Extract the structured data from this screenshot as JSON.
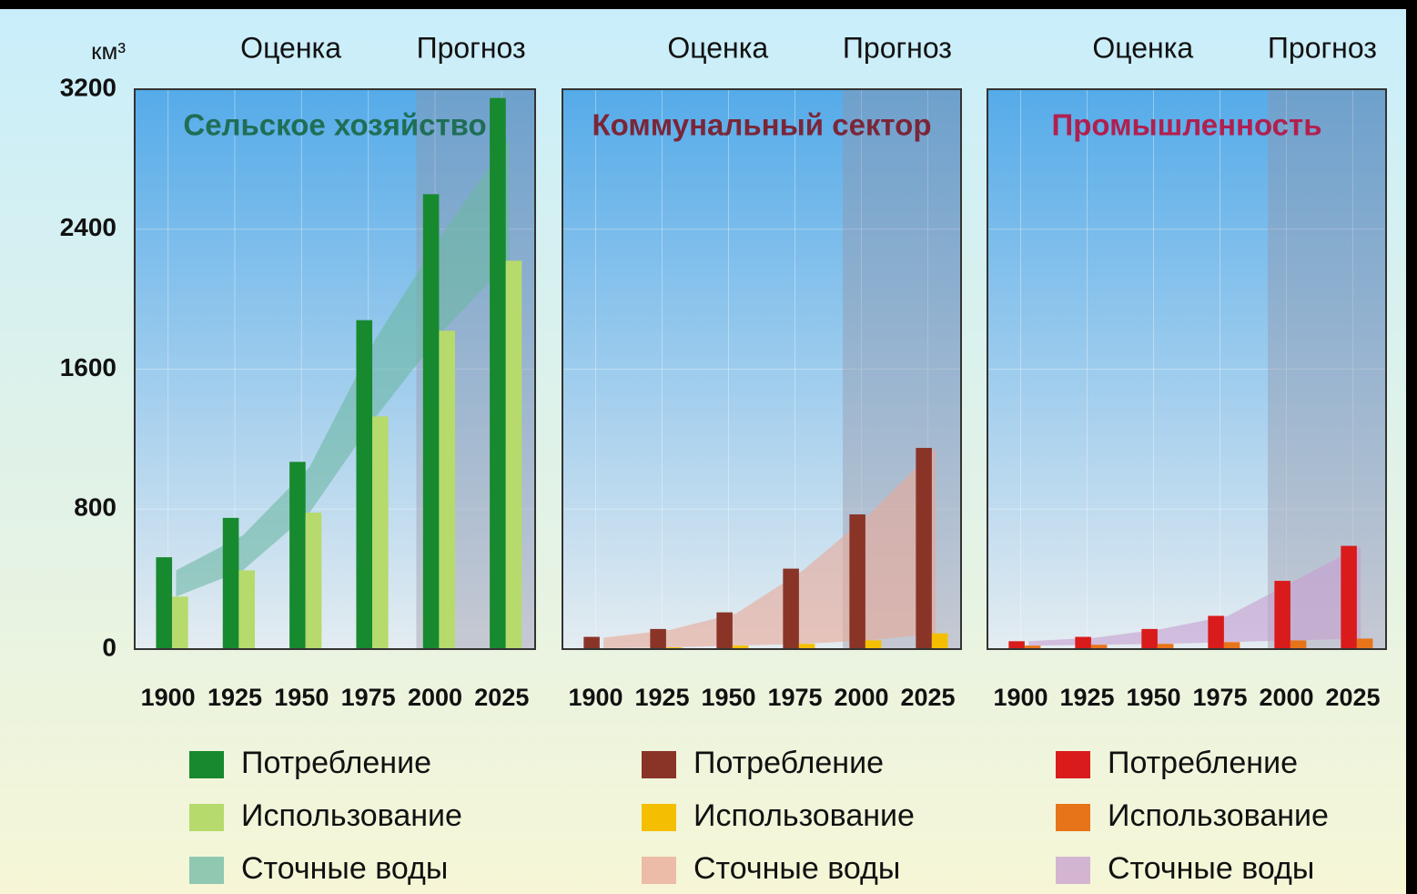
{
  "chart_data": [
    {
      "type": "bar",
      "title": "Сельское хозяйство",
      "title_color": "#1f6e55",
      "y_label": "км³",
      "annotations": [
        "Оценка",
        "Прогноз"
      ],
      "forecast_start": "2000",
      "categories": [
        "1900",
        "1925",
        "1950",
        "1975",
        "2000",
        "2025"
      ],
      "ylim": [
        0,
        3200
      ],
      "yticks": [
        0,
        800,
        1600,
        2400,
        3200
      ],
      "grid": true,
      "series": [
        {
          "name": "Потребление",
          "color": "#17892e",
          "values": [
            525,
            750,
            1070,
            1880,
            2600,
            3150
          ]
        },
        {
          "name": "Использование",
          "color": "#b6da6c",
          "values": [
            300,
            450,
            780,
            1330,
            1820,
            2220
          ]
        },
        {
          "name": "Сточные воды",
          "type": "area",
          "color": "#6db8a4",
          "values": [
            150,
            200,
            260,
            450,
            560,
            700
          ]
        }
      ]
    },
    {
      "type": "bar",
      "title": "Коммунальный сектор",
      "title_color": "#7a2638",
      "annotations": [
        "Оценка",
        "Прогноз"
      ],
      "forecast_start": "2000",
      "categories": [
        "1900",
        "1925",
        "1950",
        "1975",
        "2000",
        "2025"
      ],
      "ylim": [
        0,
        3200
      ],
      "yticks": [
        0,
        800,
        1600,
        2400,
        3200
      ],
      "grid": true,
      "series": [
        {
          "name": "Потребление",
          "color": "#8a3428",
          "values": [
            70,
            115,
            210,
            460,
            770,
            1150
          ]
        },
        {
          "name": "Использование",
          "color": "#f4bf00",
          "values": [
            5,
            10,
            20,
            30,
            50,
            90
          ]
        },
        {
          "name": "Сточные воды",
          "type": "area",
          "color": "#e8a898",
          "values": [
            60,
            100,
            185,
            420,
            720,
            1060
          ]
        }
      ]
    },
    {
      "type": "bar",
      "title": "Промышленность",
      "title_color": "#b0204f",
      "annotations": [
        "Оценка",
        "Прогноз"
      ],
      "forecast_start": "2000",
      "categories": [
        "1900",
        "1925",
        "1950",
        "1975",
        "2000",
        "2025"
      ],
      "ylim": [
        0,
        3200
      ],
      "yticks": [
        0,
        800,
        1600,
        2400,
        3200
      ],
      "grid": true,
      "series": [
        {
          "name": "Потребление",
          "color": "#d91b1b",
          "values": [
            45,
            70,
            115,
            190,
            390,
            590
          ]
        },
        {
          "name": "Использование",
          "color": "#e8741a",
          "values": [
            20,
            25,
            30,
            40,
            50,
            60
          ]
        },
        {
          "name": "Сточные воды",
          "type": "area",
          "color": "#c79fd0",
          "values": [
            25,
            40,
            85,
            150,
            340,
            530
          ]
        }
      ]
    }
  ]
}
